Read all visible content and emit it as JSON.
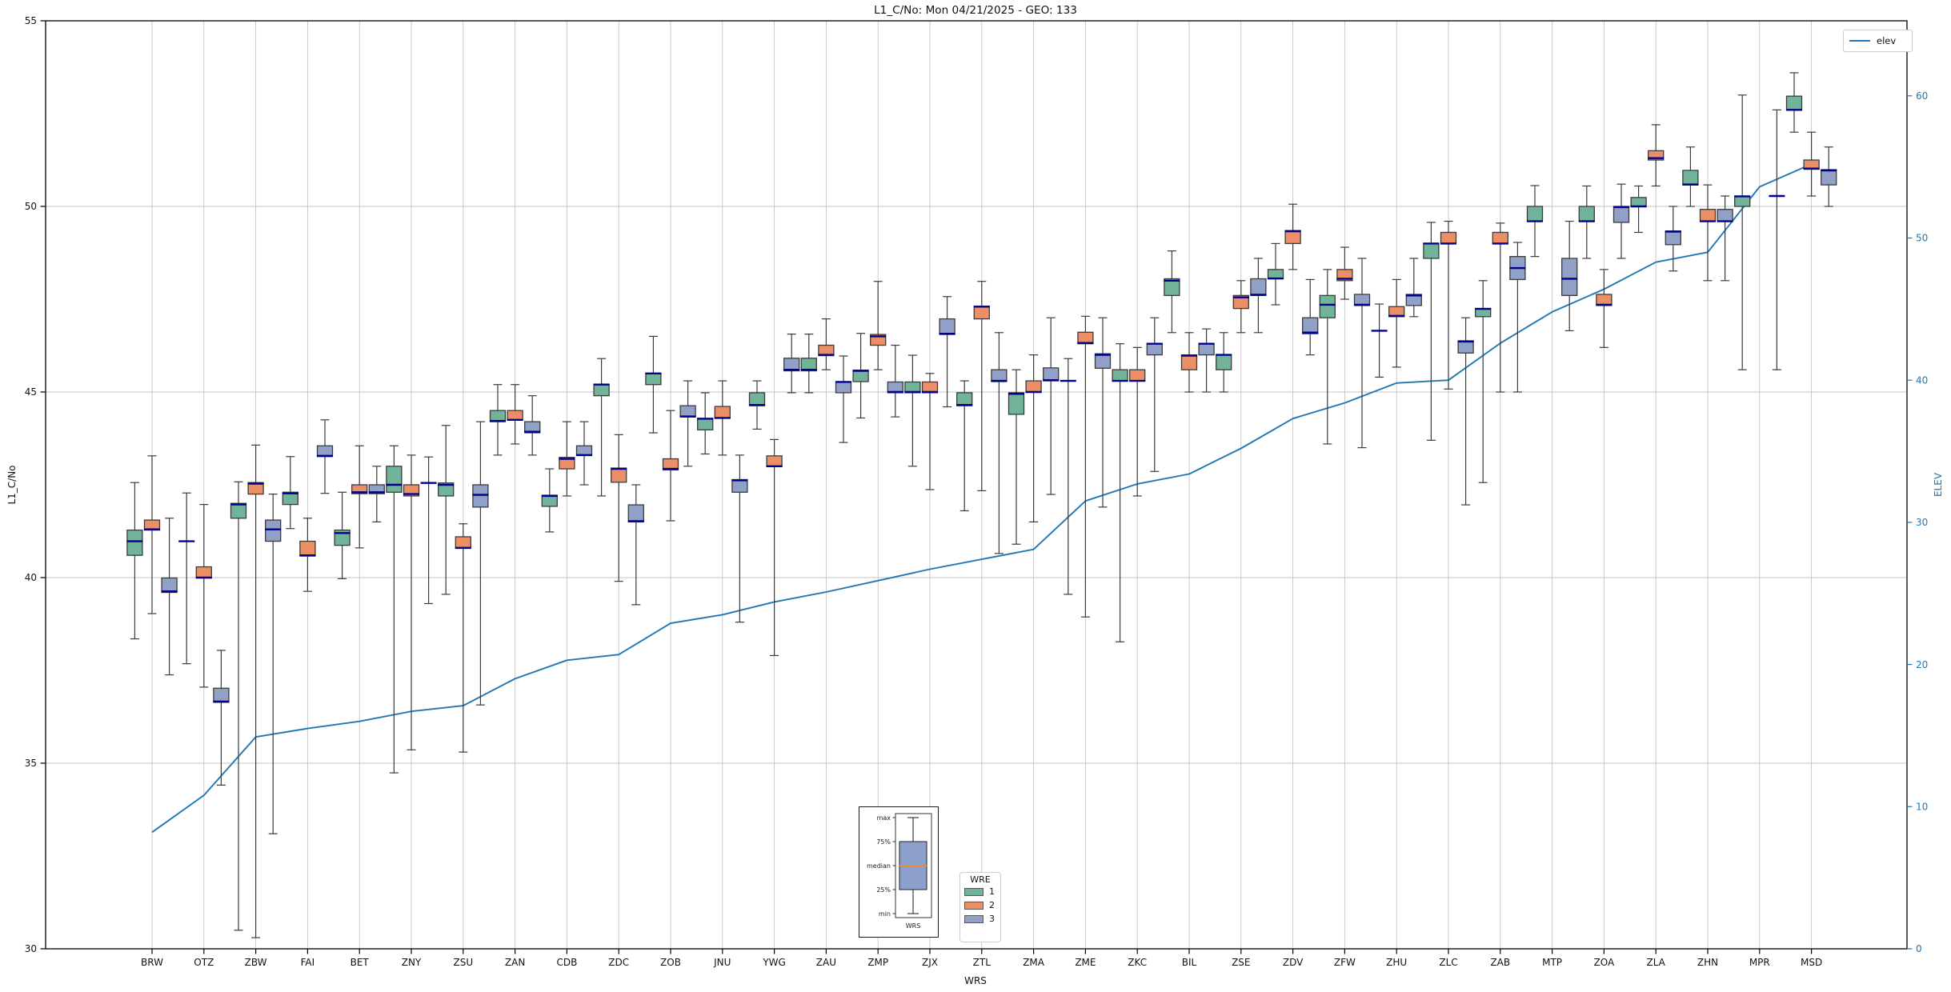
{
  "title": "L1_C/No: Mon 04/21/2025 - GEO: 133",
  "axes": {
    "left_label": "L1_C/No",
    "right_label": "ELEV",
    "x_label": "WRS",
    "left_ticks": [
      30,
      35,
      40,
      45,
      50,
      55
    ],
    "right_ticks": [
      0,
      10,
      20,
      30,
      40,
      50,
      60
    ],
    "grid": true
  },
  "legends": {
    "elev_label": "elev",
    "wre_title": "WRE",
    "wre_entries": [
      {
        "label": "1",
        "color": "#72b49a"
      },
      {
        "label": "2",
        "color": "#ec8f66"
      },
      {
        "label": "3",
        "color": "#90a0c6"
      }
    ]
  },
  "inset": {
    "labels": [
      "max",
      "75%",
      "median",
      "25%",
      "min"
    ],
    "x_label": "WRS",
    "box_color": "#8d9fcc",
    "median_color": "#ef8536"
  },
  "colors": {
    "series_green": "#72b49a",
    "series_orange": "#ec8f66",
    "series_blue": "#90a0c6",
    "box_edge": "#3b3b3b",
    "median": "#00008b",
    "elev_line": "#1f77b4",
    "grid": "#c6c6c6",
    "spine": "#000000",
    "right_axis_text": "#2077b4"
  },
  "chart_data": {
    "type": "boxplot+line",
    "title": "L1_C/No: Mon 04/21/2025 - GEO: 133",
    "xlabel": "WRS",
    "ylabel_left": "L1_C/No",
    "ylabel_right": "ELEV",
    "ylim_left": [
      30,
      55
    ],
    "ylim_right": [
      0,
      65.3
    ],
    "legend_position": "upper right",
    "box_format": [
      "median",
      "q1",
      "q3",
      "whisker_low",
      "whisker_high"
    ],
    "categories": [
      "BRW",
      "OTZ",
      "ZBW",
      "FAI",
      "BET",
      "ZNY",
      "ZSU",
      "ZAN",
      "CDB",
      "ZDC",
      "ZOB",
      "JNU",
      "YWG",
      "ZAU",
      "ZMP",
      "ZJX",
      "ZTL",
      "ZMA",
      "ZME",
      "ZKC",
      "BIL",
      "ZSE",
      "ZDV",
      "ZFW",
      "ZHU",
      "ZLC",
      "ZAB",
      "MTP",
      "ZOA",
      "ZLA",
      "ZHN",
      "MPR",
      "MSD"
    ],
    "series": [
      {
        "name": "1",
        "color": "#72b49a",
        "boxes": [
          [
            40.98,
            40.6,
            41.28,
            38.35,
            42.56
          ],
          [
            40.98,
            40.98,
            40.98,
            37.68,
            42.28
          ],
          [
            41.97,
            41.6,
            42.0,
            30.5,
            42.58
          ],
          [
            42.27,
            41.97,
            42.3,
            41.32,
            43.26
          ],
          [
            41.2,
            40.87,
            41.28,
            39.97,
            42.3
          ],
          [
            42.5,
            42.3,
            43.0,
            34.74,
            43.55
          ],
          [
            42.5,
            42.2,
            42.55,
            39.55,
            44.1
          ],
          [
            44.22,
            44.2,
            44.5,
            43.3,
            45.2
          ],
          [
            42.2,
            41.92,
            42.22,
            41.23,
            42.93
          ],
          [
            45.2,
            44.9,
            45.2,
            42.2,
            45.9
          ],
          [
            45.5,
            45.2,
            45.5,
            43.9,
            46.5
          ],
          [
            44.28,
            43.98,
            44.29,
            43.33,
            44.98
          ],
          [
            44.65,
            44.63,
            44.98,
            44.0,
            45.3
          ],
          [
            45.6,
            45.57,
            45.91,
            44.98,
            46.56
          ],
          [
            45.57,
            45.28,
            45.59,
            44.3,
            46.58
          ],
          [
            45.0,
            44.98,
            45.27,
            43.0,
            45.99
          ],
          [
            44.65,
            44.63,
            44.98,
            41.8,
            45.3
          ],
          [
            44.95,
            44.4,
            44.98,
            40.9,
            45.6
          ],
          [
            45.3,
            45.3,
            45.3,
            39.55,
            45.9
          ],
          [
            45.3,
            45.3,
            45.6,
            38.27,
            46.3
          ],
          [
            48.0,
            47.6,
            48.05,
            46.6,
            48.8
          ],
          [
            46.0,
            45.6,
            46.0,
            45.0,
            46.6
          ],
          [
            48.06,
            48.05,
            48.3,
            47.35,
            49.0
          ],
          [
            47.35,
            47.0,
            47.6,
            43.6,
            48.3
          ],
          [
            46.65,
            46.65,
            46.65,
            45.4,
            47.37
          ],
          [
            49.0,
            48.6,
            49.0,
            43.7,
            49.57
          ],
          [
            47.24,
            47.03,
            47.25,
            42.56,
            48.0
          ],
          [
            49.6,
            49.6,
            50.0,
            48.65,
            50.56
          ],
          [
            49.6,
            49.6,
            50.0,
            48.6,
            50.55
          ],
          [
            50.0,
            50.0,
            50.24,
            49.3,
            50.55
          ],
          [
            50.59,
            50.58,
            50.97,
            50.0,
            51.6
          ],
          [
            50.27,
            50.0,
            50.27,
            45.6,
            53.0
          ],
          [
            52.6,
            52.59,
            52.97,
            52.0,
            53.6
          ]
        ]
      },
      {
        "name": "2",
        "color": "#ec8f66",
        "boxes": [
          [
            41.3,
            41.28,
            41.55,
            39.03,
            43.28
          ],
          [
            40.0,
            39.99,
            40.29,
            37.05,
            41.97
          ],
          [
            42.53,
            42.25,
            42.56,
            30.3,
            43.57
          ],
          [
            40.6,
            40.58,
            40.98,
            39.63,
            41.6
          ],
          [
            42.3,
            42.26,
            42.5,
            40.8,
            43.55
          ],
          [
            42.25,
            42.2,
            42.5,
            35.36,
            43.3
          ],
          [
            40.8,
            40.8,
            41.1,
            35.3,
            41.45
          ],
          [
            44.25,
            44.25,
            44.5,
            43.6,
            45.2
          ],
          [
            43.2,
            42.93,
            43.24,
            42.2,
            44.2
          ],
          [
            42.93,
            42.57,
            42.95,
            39.9,
            43.85
          ],
          [
            42.93,
            42.9,
            43.2,
            41.53,
            44.5
          ],
          [
            44.3,
            44.3,
            44.61,
            43.3,
            45.3
          ],
          [
            43.0,
            43.0,
            43.28,
            37.9,
            43.72
          ],
          [
            46.0,
            45.98,
            46.26,
            45.6,
            46.97
          ],
          [
            46.5,
            46.26,
            46.55,
            45.6,
            47.98
          ],
          [
            45.0,
            44.98,
            45.27,
            42.37,
            45.5
          ],
          [
            47.3,
            46.97,
            47.31,
            42.34,
            47.98
          ],
          [
            45.0,
            45.0,
            45.3,
            41.5,
            46.0
          ],
          [
            46.32,
            46.3,
            46.61,
            38.94,
            47.04
          ],
          [
            45.3,
            45.3,
            45.6,
            42.2,
            46.2
          ],
          [
            45.98,
            45.6,
            46.0,
            45.0,
            46.6
          ],
          [
            47.55,
            47.25,
            47.6,
            46.6,
            48.0
          ],
          [
            49.33,
            49.0,
            49.35,
            48.3,
            50.06
          ],
          [
            48.05,
            48.0,
            48.3,
            47.5,
            48.9
          ],
          [
            47.05,
            47.03,
            47.3,
            45.67,
            48.03
          ],
          [
            49.0,
            49.0,
            49.3,
            45.08,
            49.6
          ],
          [
            49.0,
            49.0,
            49.3,
            45.0,
            49.55
          ],
          null,
          [
            47.35,
            47.33,
            47.63,
            46.2,
            48.3
          ],
          [
            51.3,
            51.25,
            51.5,
            50.55,
            52.2
          ],
          [
            49.6,
            49.6,
            49.92,
            48.0,
            50.58
          ],
          null,
          [
            51.02,
            51.0,
            51.25,
            50.28,
            52.0
          ]
        ]
      },
      {
        "name": "3",
        "color": "#90a0c6",
        "boxes": [
          [
            39.63,
            39.6,
            39.99,
            37.38,
            41.6
          ],
          [
            36.66,
            36.64,
            37.02,
            34.41,
            38.04
          ],
          [
            41.3,
            40.98,
            41.55,
            33.1,
            42.25
          ],
          [
            43.28,
            43.26,
            43.55,
            42.27,
            44.25
          ],
          [
            42.3,
            42.26,
            42.5,
            41.5,
            43.0
          ],
          [
            42.55,
            42.55,
            42.55,
            39.3,
            43.25
          ],
          [
            42.23,
            41.9,
            42.5,
            36.57,
            44.2
          ],
          [
            43.93,
            43.9,
            44.2,
            43.3,
            44.9
          ],
          [
            43.3,
            43.3,
            43.55,
            42.5,
            44.2
          ],
          [
            41.52,
            41.5,
            41.96,
            39.27,
            42.5
          ],
          [
            44.34,
            44.33,
            44.63,
            43.0,
            45.3
          ],
          [
            42.62,
            42.3,
            42.64,
            38.8,
            43.3
          ],
          [
            45.6,
            45.57,
            45.91,
            44.98,
            46.56
          ],
          [
            45.27,
            44.98,
            45.27,
            43.64,
            45.97
          ],
          [
            45.0,
            44.98,
            45.27,
            44.33,
            46.26
          ],
          [
            46.57,
            46.55,
            46.97,
            44.6,
            47.57
          ],
          [
            45.3,
            45.28,
            45.6,
            40.65,
            46.6
          ],
          [
            45.32,
            45.3,
            45.65,
            42.24,
            47.0
          ],
          [
            46.0,
            45.64,
            46.03,
            41.9,
            47.0
          ],
          [
            46.3,
            46.0,
            46.3,
            42.86,
            47.0
          ],
          [
            46.3,
            46.0,
            46.3,
            45.0,
            46.7
          ],
          [
            47.62,
            47.6,
            48.05,
            46.6,
            48.6
          ],
          [
            46.6,
            46.57,
            47.0,
            46.0,
            48.03
          ],
          [
            47.35,
            47.33,
            47.63,
            43.5,
            48.6
          ],
          [
            47.6,
            47.33,
            47.63,
            47.03,
            48.6
          ],
          [
            46.36,
            46.05,
            46.38,
            41.96,
            47.0
          ],
          [
            48.34,
            48.03,
            48.65,
            45.0,
            49.03
          ],
          [
            48.05,
            47.6,
            48.6,
            46.65,
            49.6
          ],
          [
            49.98,
            49.57,
            50.0,
            48.6,
            50.6
          ],
          [
            49.32,
            48.97,
            49.34,
            48.26,
            50.0
          ],
          [
            49.6,
            49.6,
            49.92,
            48.0,
            50.28
          ],
          [
            50.28,
            50.28,
            50.28,
            45.6,
            52.6
          ],
          [
            50.97,
            50.58,
            50.99,
            50.0,
            51.6
          ]
        ]
      }
    ],
    "line": {
      "name": "elev",
      "color": "#1f77b4",
      "axis": "right",
      "values": [
        8.2,
        10.8,
        14.9,
        15.5,
        16.0,
        16.7,
        17.1,
        19.0,
        20.3,
        20.7,
        22.9,
        23.5,
        24.4,
        25.1,
        25.9,
        26.7,
        27.4,
        28.1,
        31.5,
        32.7,
        33.4,
        35.2,
        37.3,
        38.4,
        39.8,
        40.0,
        42.6,
        44.8,
        46.4,
        48.3,
        49.0,
        53.6,
        55.2
      ]
    }
  }
}
